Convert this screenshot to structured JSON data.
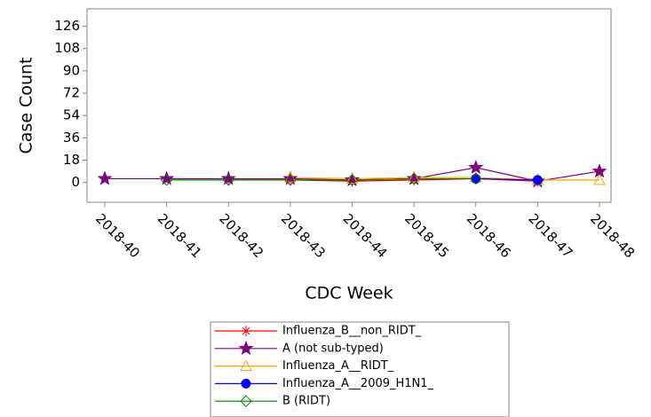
{
  "chart_data": {
    "type": "line",
    "x_label": "CDC Week",
    "y_label": "Case Count",
    "categories": [
      "2018-40",
      "2018-41",
      "2018-42",
      "2018-43",
      "2018-44",
      "2018-45",
      "2018-46",
      "2018-47",
      "2018-48"
    ],
    "ylim": [
      -16,
      140
    ],
    "yticks": [
      0,
      18,
      36,
      54,
      72,
      90,
      108,
      126
    ],
    "series": [
      {
        "name": "Influenza_B__non_RIDT_",
        "color": "#ff0000",
        "marker": "asterisk",
        "values": [
          null,
          null,
          2,
          2,
          1,
          2,
          3,
          1,
          null
        ]
      },
      {
        "name": "A (not sub-typed)",
        "color": "#800080",
        "marker": "star",
        "values": [
          3,
          3,
          3,
          3,
          2,
          3,
          12,
          1,
          9
        ]
      },
      {
        "name": "Influenza_A__RIDT_",
        "color": "#ffa500",
        "marker": "triangle",
        "values": [
          null,
          null,
          null,
          4,
          3,
          4,
          4,
          2,
          2
        ]
      },
      {
        "name": "Influenza_A__2009_H1N1_",
        "color": "#0000ff",
        "marker": "circle",
        "values": [
          null,
          null,
          null,
          null,
          null,
          null,
          3,
          2,
          null
        ]
      },
      {
        "name": "B (RIDT)",
        "color": "#008000",
        "marker": "diamond",
        "values": [
          null,
          2,
          2,
          2,
          2,
          3,
          3,
          null,
          null
        ]
      }
    ]
  }
}
